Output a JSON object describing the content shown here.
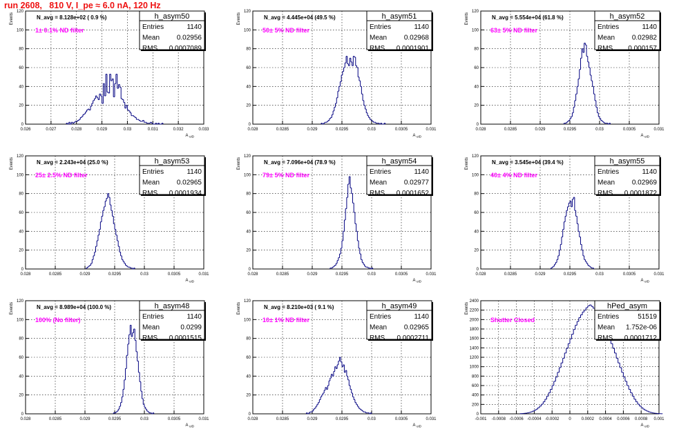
{
  "page": {
    "title": "run 2608,   810 V, I_pe ≈ 6.0 nA, 120 Hz"
  },
  "colors": {
    "histogram": "#000080",
    "annotation": "#ff00ff",
    "title": "#ee1111",
    "grid": "#000000"
  },
  "stats_labels": {
    "entries": "Entries",
    "mean": "Mean",
    "rms": "RMS"
  },
  "chart_data": [
    {
      "type": "histogram",
      "name": "h_asym50",
      "navg": "N_avg = 8.128e+02 ( 0.9 %)",
      "filter": "1± 0.1% ND filter",
      "stats": {
        "entries": "1140",
        "mean": "0.02956",
        "rms": "0.0007089"
      },
      "xlabel": "A_uID",
      "ylabel": "Events",
      "xlim": [
        0.026,
        0.033
      ],
      "ylim": [
        0,
        120
      ],
      "xticks": [
        0.026,
        0.027,
        0.028,
        0.029,
        0.03,
        0.031,
        0.032,
        0.033
      ],
      "xtick_labels": [
        "0.026",
        "0.027",
        "0.028",
        "0.029",
        "0.03",
        "0.031",
        "0.032",
        "0.033"
      ],
      "yticks": [
        0,
        20,
        40,
        60,
        80,
        100,
        120
      ],
      "ytick_labels": [
        "0",
        "20",
        "40",
        "60",
        "80",
        "100",
        "120"
      ],
      "grid": true,
      "bins": {
        "start": 0.0276,
        "width": 5e-05,
        "counts": [
          1,
          0,
          2,
          0,
          2,
          1,
          2,
          3,
          3,
          4,
          5,
          7,
          8,
          10,
          11,
          13,
          15,
          16,
          15,
          19,
          22,
          25,
          27,
          30,
          28,
          26,
          32,
          30,
          22,
          43,
          30,
          53,
          34,
          33,
          53,
          46,
          48,
          29,
          43,
          53,
          38,
          42,
          39,
          27,
          26,
          23,
          17,
          20,
          15,
          14,
          12,
          9,
          9,
          8,
          7,
          5,
          5,
          4,
          3,
          3,
          4,
          2,
          2,
          1,
          1,
          1,
          2,
          1,
          0,
          0,
          1,
          0,
          1,
          0,
          0,
          1
        ]
      }
    },
    {
      "type": "histogram",
      "name": "h_asym51",
      "navg": "N_avg = 4.445e+04 (49.5 %)",
      "filter": "50± 5% ND filter",
      "stats": {
        "entries": "1140",
        "mean": "0.02968",
        "rms": "0.0001901"
      },
      "xlabel": "A_uID",
      "ylabel": "Events",
      "xlim": [
        0.028,
        0.031
      ],
      "ylim": [
        0,
        120
      ],
      "xticks": [
        0.028,
        0.0285,
        0.029,
        0.0295,
        0.03,
        0.0305,
        0.031
      ],
      "xtick_labels": [
        "0.028",
        "0.0285",
        "0.029",
        "0.0295",
        "0.03",
        "0.0305",
        "0.031"
      ],
      "yticks": [
        0,
        20,
        40,
        60,
        80,
        100,
        120
      ],
      "ytick_labels": [
        "0",
        "20",
        "40",
        "60",
        "80",
        "100",
        "120"
      ],
      "grid": true,
      "bins": {
        "start": 0.02915,
        "width": 2e-05,
        "counts": [
          1,
          0,
          1,
          2,
          2,
          3,
          4,
          6,
          7,
          10,
          14,
          18,
          22,
          28,
          35,
          40,
          45,
          52,
          56,
          60,
          65,
          72,
          64,
          62,
          70,
          66,
          62,
          72,
          71,
          62,
          60,
          50,
          46,
          40,
          32,
          25,
          20,
          16,
          12,
          9,
          7,
          5,
          4,
          3,
          2,
          2,
          1,
          1,
          1,
          0,
          1,
          0,
          0,
          1
        ]
      }
    },
    {
      "type": "histogram",
      "name": "h_asym52",
      "navg": "N_avg = 5.554e+04 (61.8 %)",
      "filter": "63± 5% ND filter",
      "stats": {
        "entries": "1140",
        "mean": "0.02982",
        "rms": "0.000157"
      },
      "xlabel": "A_uID",
      "ylabel": "Events",
      "xlim": [
        0.028,
        0.031
      ],
      "ylim": [
        0,
        120
      ],
      "xticks": [
        0.028,
        0.0285,
        0.029,
        0.0295,
        0.03,
        0.0305,
        0.031
      ],
      "xtick_labels": [
        "0.028",
        "0.0285",
        "0.029",
        "0.0295",
        "0.03",
        "0.0305",
        "0.031"
      ],
      "yticks": [
        0,
        20,
        40,
        60,
        80,
        100,
        120
      ],
      "ytick_labels": [
        "0",
        "20",
        "40",
        "60",
        "80",
        "100",
        "120"
      ],
      "grid": true,
      "bins": {
        "start": 0.0294,
        "width": 2e-05,
        "counts": [
          1,
          1,
          2,
          3,
          4,
          6,
          8,
          12,
          18,
          25,
          32,
          40,
          48,
          58,
          70,
          80,
          76,
          86,
          84,
          72,
          66,
          60,
          52,
          46,
          40,
          32,
          25,
          18,
          12,
          8,
          6,
          4,
          3,
          2,
          1,
          1,
          1,
          0,
          1
        ]
      }
    },
    {
      "type": "histogram",
      "name": "h_asym53",
      "navg": "N_avg = 2.243e+04 (25.0 %)",
      "filter": "25± 2.5% ND filter",
      "stats": {
        "entries": "1140",
        "mean": "0.02965",
        "rms": "0.0001934"
      },
      "xlabel": "A_uID",
      "ylabel": "Events",
      "xlim": [
        0.028,
        0.031
      ],
      "ylim": [
        0,
        120
      ],
      "xticks": [
        0.028,
        0.0285,
        0.029,
        0.0295,
        0.03,
        0.0305,
        0.031
      ],
      "xtick_labels": [
        "0.028",
        "0.0285",
        "0.029",
        "0.0295",
        "0.03",
        "0.0305",
        "0.031"
      ],
      "yticks": [
        0,
        20,
        40,
        60,
        80,
        100,
        120
      ],
      "ytick_labels": [
        "0",
        "20",
        "40",
        "60",
        "80",
        "100",
        "120"
      ],
      "grid": true,
      "bins": {
        "start": 0.02902,
        "width": 2e-05,
        "counts": [
          1,
          2,
          3,
          4,
          6,
          10,
          14,
          18,
          24,
          30,
          36,
          42,
          50,
          56,
          62,
          66,
          72,
          75,
          80,
          76,
          68,
          62,
          56,
          48,
          42,
          36,
          30,
          24,
          18,
          14,
          10,
          8,
          6,
          4,
          3,
          2,
          2,
          1,
          1,
          0,
          1
        ]
      }
    },
    {
      "type": "histogram",
      "name": "h_asym54",
      "navg": "N_avg = 7.096e+04 (78.9 %)",
      "filter": "79± 5% ND filter",
      "stats": {
        "entries": "1140",
        "mean": "0.02977",
        "rms": "0.0001652"
      },
      "xlabel": "A_uID",
      "ylabel": "Events",
      "xlim": [
        0.028,
        0.031
      ],
      "ylim": [
        0,
        120
      ],
      "xticks": [
        0.028,
        0.0285,
        0.029,
        0.0295,
        0.03,
        0.0305,
        0.031
      ],
      "xtick_labels": [
        "0.028",
        "0.0285",
        "0.029",
        "0.0295",
        "0.03",
        "0.0305",
        "0.031"
      ],
      "yticks": [
        0,
        20,
        40,
        60,
        80,
        100,
        120
      ],
      "ytick_labels": [
        "0",
        "20",
        "40",
        "60",
        "80",
        "100",
        "120"
      ],
      "grid": true,
      "bins": {
        "start": 0.0293,
        "width": 2e-05,
        "counts": [
          1,
          1,
          2,
          3,
          4,
          6,
          9,
          12,
          16,
          22,
          30,
          40,
          52,
          64,
          76,
          90,
          98,
          86,
          80,
          70,
          60,
          48,
          40,
          30,
          22,
          16,
          10,
          7,
          5,
          3,
          2,
          2,
          1,
          1,
          0,
          1
        ]
      }
    },
    {
      "type": "histogram",
      "name": "h_asym55",
      "navg": "N_avg = 3.545e+04 (39.4 %)",
      "filter": "40± 4% ND filter",
      "stats": {
        "entries": "1140",
        "mean": "0.02969",
        "rms": "0.0001872"
      },
      "xlabel": "A_uID",
      "ylabel": "Events",
      "xlim": [
        0.028,
        0.031
      ],
      "ylim": [
        0,
        120
      ],
      "xticks": [
        0.028,
        0.0285,
        0.029,
        0.0295,
        0.03,
        0.0305,
        0.031
      ],
      "xtick_labels": [
        "0.028",
        "0.0285",
        "0.029",
        "0.0295",
        "0.03",
        "0.0305",
        "0.031"
      ],
      "yticks": [
        0,
        20,
        40,
        60,
        80,
        100,
        120
      ],
      "ytick_labels": [
        "0",
        "20",
        "40",
        "60",
        "80",
        "100",
        "120"
      ],
      "grid": true,
      "bins": {
        "start": 0.02918,
        "width": 2e-05,
        "counts": [
          1,
          2,
          3,
          5,
          7,
          10,
          14,
          20,
          26,
          34,
          42,
          50,
          56,
          62,
          66,
          70,
          72,
          66,
          74,
          76,
          62,
          56,
          48,
          40,
          34,
          26,
          20,
          14,
          10,
          8,
          6,
          4,
          3,
          2,
          1,
          1
        ]
      }
    },
    {
      "type": "histogram",
      "name": "h_asym48",
      "navg": "N_avg = 8.989e+04 (100.0 %)",
      "filter": "100% (No filter)",
      "stats": {
        "entries": "1140",
        "mean": "0.0299",
        "rms": "0.0001515"
      },
      "xlabel": "A_uID",
      "ylabel": "Events",
      "xlim": [
        0.028,
        0.031
      ],
      "ylim": [
        0,
        120
      ],
      "xticks": [
        0.028,
        0.0285,
        0.029,
        0.0295,
        0.03,
        0.0305,
        0.031
      ],
      "xtick_labels": [
        "0.028",
        "0.0285",
        "0.029",
        "0.0295",
        "0.03",
        "0.0305",
        "0.031"
      ],
      "yticks": [
        0,
        20,
        40,
        60,
        80,
        100,
        120
      ],
      "ytick_labels": [
        "0",
        "20",
        "40",
        "60",
        "80",
        "100",
        "120"
      ],
      "grid": true,
      "bins": {
        "start": 0.02948,
        "width": 2e-05,
        "counts": [
          1,
          1,
          2,
          3,
          5,
          8,
          12,
          18,
          26,
          36,
          48,
          62,
          74,
          84,
          94,
          82,
          86,
          90,
          78,
          66,
          56,
          44,
          34,
          24,
          16,
          10,
          7,
          5,
          3,
          2,
          1,
          1,
          0,
          1
        ]
      }
    },
    {
      "type": "histogram",
      "name": "h_asym49",
      "navg": "N_avg = 8.210e+03 ( 9.1 %)",
      "filter": "10± 1% ND filter",
      "stats": {
        "entries": "1140",
        "mean": "0.02965",
        "rms": "0.0002711"
      },
      "xlabel": "A_uID",
      "ylabel": "Events",
      "xlim": [
        0.028,
        0.031
      ],
      "ylim": [
        0,
        120
      ],
      "xticks": [
        0.028,
        0.0285,
        0.029,
        0.0295,
        0.03,
        0.0305,
        0.031
      ],
      "xtick_labels": [
        "0.028",
        "0.0285",
        "0.029",
        "0.0295",
        "0.03",
        "0.0305",
        "0.031"
      ],
      "yticks": [
        0,
        20,
        40,
        60,
        80,
        100,
        120
      ],
      "ytick_labels": [
        "0",
        "20",
        "40",
        "60",
        "80",
        "100",
        "120"
      ],
      "grid": true,
      "bins": {
        "start": 0.0289,
        "width": 2e-05,
        "counts": [
          1,
          0,
          1,
          2,
          2,
          3,
          5,
          6,
          8,
          10,
          12,
          15,
          18,
          20,
          22,
          25,
          28,
          26,
          30,
          35,
          38,
          42,
          40,
          45,
          50,
          48,
          52,
          56,
          60,
          55,
          50,
          52,
          44,
          46,
          40,
          36,
          30,
          26,
          22,
          18,
          15,
          12,
          10,
          8,
          6,
          5,
          4,
          3,
          2,
          2,
          1,
          1,
          1,
          0,
          1
        ]
      }
    },
    {
      "type": "histogram",
      "name": "hPed_asym",
      "navg": "",
      "filter": "Shutter Closed",
      "stats": {
        "entries": "51519",
        "mean": "1.752e-06",
        "rms": "0.0001712"
      },
      "xlabel": "A_uID",
      "ylabel": "Events",
      "xlim": [
        -0.001,
        0.001
      ],
      "ylim": [
        0,
        2400
      ],
      "xticks": [
        -0.001,
        -0.0008,
        -0.0006,
        -0.0004,
        -0.0002,
        0,
        0.0002,
        0.0004,
        0.0006,
        0.0008,
        0.001
      ],
      "xtick_labels": [
        "-0.001",
        "-0.0008",
        "-0.0006",
        "-0.0004",
        "-0.0002",
        "0",
        "0.0002",
        "0.0004",
        "0.0006",
        "0.0008",
        "0.001"
      ],
      "yticks": [
        0,
        200,
        400,
        600,
        800,
        1000,
        1200,
        1400,
        1600,
        1800,
        2000,
        2200,
        2400
      ],
      "ytick_labels": [
        "0",
        "200",
        "400",
        "600",
        "800",
        "1000",
        "1200",
        "1400",
        "1600",
        "1800",
        "2000",
        "2200",
        "2400"
      ],
      "grid": true,
      "bins": {
        "start": -0.00056,
        "width": 2e-05,
        "counts": [
          4,
          6,
          10,
          14,
          20,
          30,
          42,
          58,
          76,
          100,
          130,
          165,
          205,
          255,
          310,
          375,
          445,
          520,
          600,
          690,
          780,
          880,
          980,
          1080,
          1180,
          1290,
          1390,
          1490,
          1590,
          1690,
          1790,
          1880,
          1960,
          2040,
          2100,
          2160,
          2200,
          2250,
          2290,
          2310,
          2280,
          2240,
          2200,
          2150,
          2100,
          2040,
          1960,
          1880,
          1790,
          1690,
          1590,
          1490,
          1390,
          1290,
          1180,
          1080,
          980,
          880,
          780,
          690,
          600,
          520,
          445,
          375,
          310,
          255,
          205,
          165,
          130,
          100,
          76,
          58,
          42,
          30,
          20,
          14,
          10,
          6,
          4,
          2
        ]
      }
    }
  ]
}
